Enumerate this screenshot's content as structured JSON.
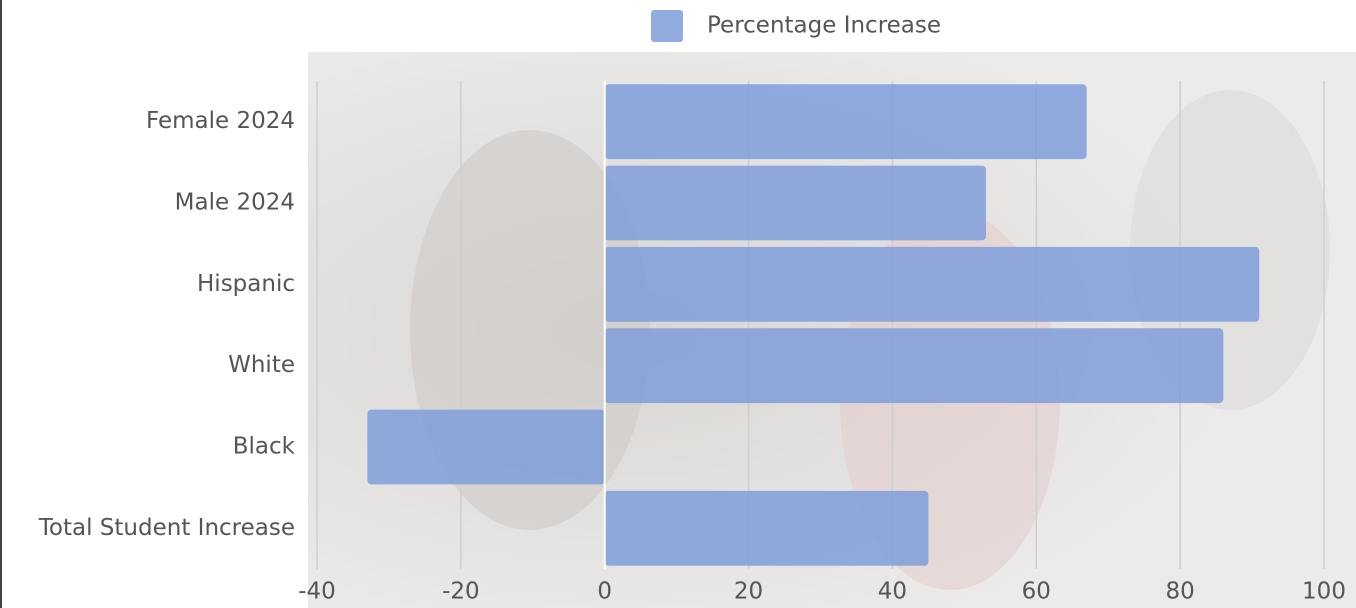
{
  "chart_data": {
    "type": "bar",
    "orientation": "horizontal",
    "categories": [
      "Female 2024",
      "Male 2024",
      "Hispanic",
      "White",
      "Black",
      "Total Student Increase"
    ],
    "series": [
      {
        "name": "Percentage Increase",
        "color": "#7f9ddb",
        "values": [
          67,
          53,
          91,
          86,
          -33,
          45
        ]
      }
    ],
    "xlim": [
      -40,
      100
    ],
    "xticks": [
      -40,
      -20,
      0,
      20,
      40,
      60,
      80,
      100
    ],
    "grid": true,
    "legend": "top"
  }
}
